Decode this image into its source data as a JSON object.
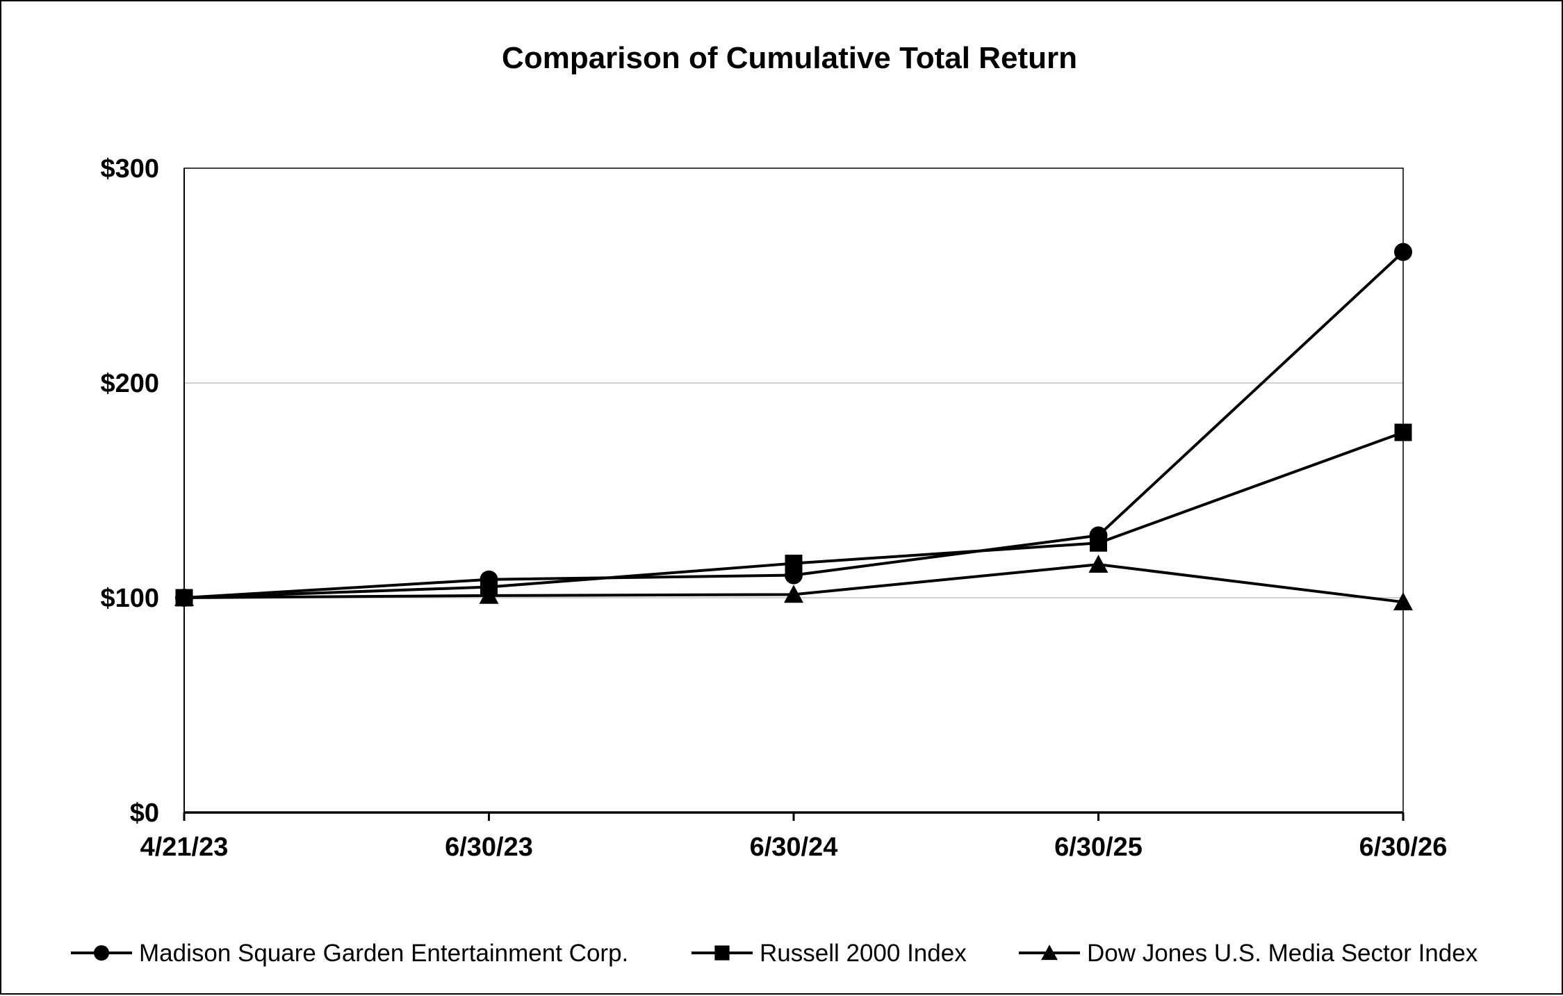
{
  "chart_data": {
    "type": "line",
    "title": "Comparison of Cumulative Total Return",
    "categories": [
      "4/21/23",
      "6/30/23",
      "6/30/24",
      "6/30/25",
      "6/30/26"
    ],
    "y_ticks": [
      "$0",
      "$100",
      "$200",
      "$300"
    ],
    "ylim": [
      0,
      300
    ],
    "grid": "horizontal",
    "legend_position": "bottom",
    "series": [
      {
        "name": "Madison Square Garden Entertainment Corp.",
        "marker": "circle",
        "values": [
          100,
          108.5,
          110.5,
          129,
          261
        ]
      },
      {
        "name": "Russell 2000 Index",
        "marker": "square",
        "values": [
          100,
          105,
          116,
          125.5,
          177
        ]
      },
      {
        "name": "Dow Jones U.S. Media Sector Index",
        "marker": "triangle",
        "values": [
          100,
          101,
          101.5,
          115.5,
          98
        ]
      }
    ],
    "colors": {
      "line": "#000000",
      "grid": "#bfbfbf"
    }
  }
}
